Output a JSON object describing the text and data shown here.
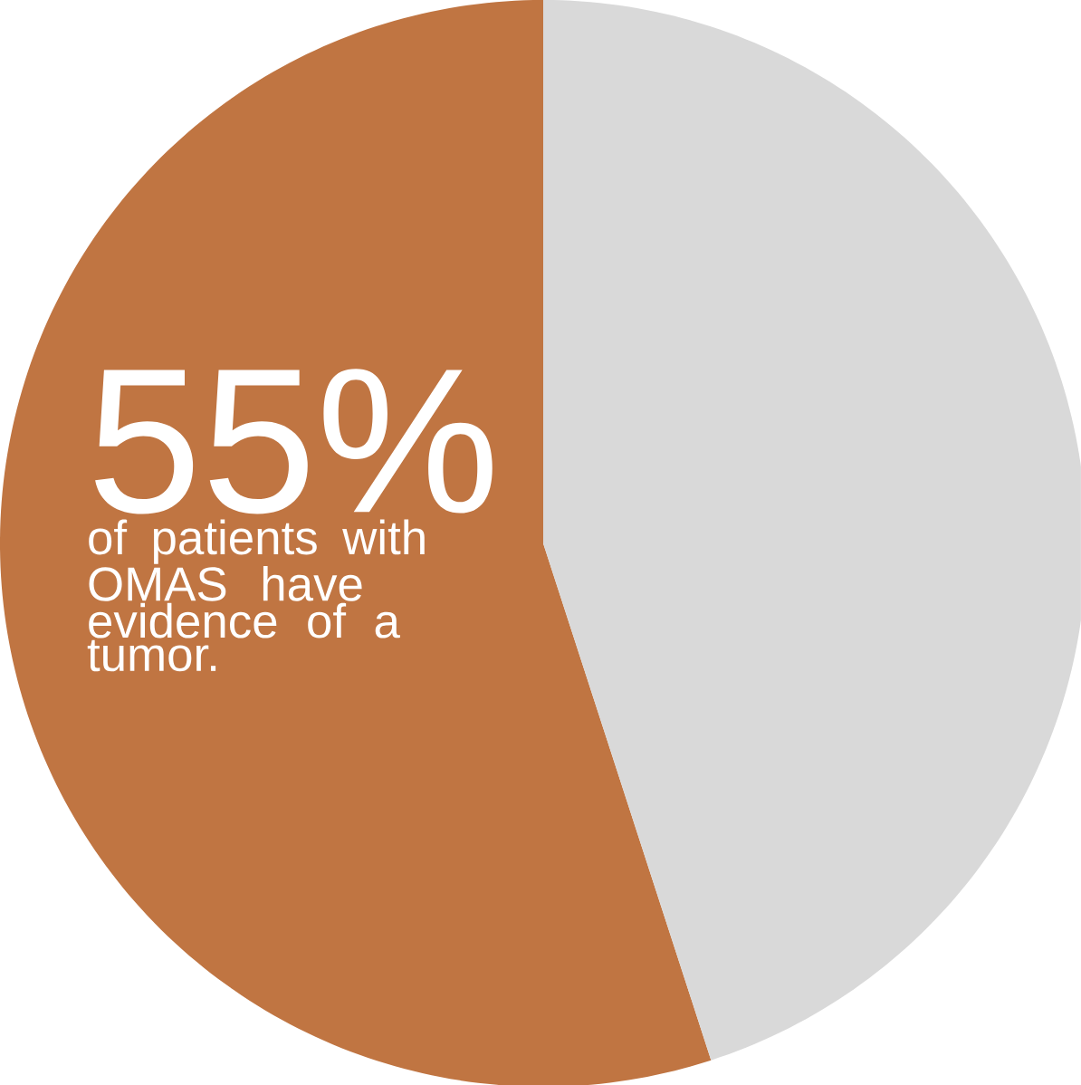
{
  "chart_data": {
    "type": "pie",
    "categories": [
      null,
      null
    ],
    "values": [
      55,
      45
    ],
    "colors": [
      "#c07542",
      "#d9d9d9"
    ],
    "value_labels": [
      "55%",
      null
    ],
    "annotations": [
      "of patients with OMAS have evidence of a tumor."
    ]
  }
}
